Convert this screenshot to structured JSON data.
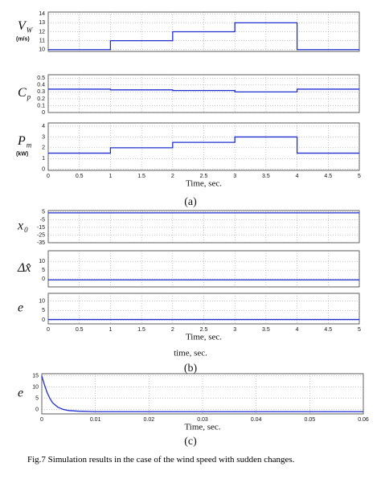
{
  "chart_data": [
    {
      "type": "line",
      "ylabel": "V",
      "ylabel_sub": "W",
      "ylabel_unit": "(m/s)",
      "color": "#1f2fd0",
      "x": [
        0,
        1,
        1,
        2,
        2,
        3,
        3,
        4,
        4,
        5
      ],
      "values": [
        10,
        10,
        11,
        11,
        12,
        12,
        13,
        13,
        10,
        10
      ],
      "xlim": [
        0,
        5
      ],
      "ylim": [
        9.8,
        14.2
      ],
      "xticks": [
        0,
        0.5,
        1,
        1.5,
        2,
        2.5,
        3,
        3.5,
        4,
        4.5,
        5
      ],
      "yticks": [
        10,
        11,
        12,
        13,
        14
      ],
      "grid": true,
      "xtick_labels": false
    },
    {
      "type": "line",
      "ylabel": "C",
      "ylabel_sub": "p",
      "color": "#1f2fd0",
      "x": [
        0,
        1,
        1,
        2,
        2,
        3,
        3,
        4,
        4,
        5
      ],
      "values": [
        0.34,
        0.34,
        0.33,
        0.33,
        0.32,
        0.32,
        0.3,
        0.3,
        0.34,
        0.34
      ],
      "xlim": [
        0,
        5
      ],
      "ylim": [
        0,
        0.55
      ],
      "xticks": [
        0,
        0.5,
        1,
        1.5,
        2,
        2.5,
        3,
        3.5,
        4,
        4.5,
        5
      ],
      "yticks": [
        0,
        0.1,
        0.2,
        0.3,
        0.4,
        0.5
      ],
      "grid": true,
      "xtick_labels": false
    },
    {
      "type": "line",
      "ylabel": "P",
      "ylabel_sub": "m",
      "ylabel_unit": "(kW)",
      "color": "#1f2fd0",
      "x": [
        0,
        1,
        1,
        2,
        2,
        3,
        3,
        4,
        4,
        5
      ],
      "values": [
        1.5,
        1.5,
        2,
        2,
        2.5,
        2.5,
        3,
        3,
        1.5,
        1.5
      ],
      "xlim": [
        0,
        5
      ],
      "ylim": [
        -0.1,
        4.3
      ],
      "xticks": [
        0,
        0.5,
        1,
        1.5,
        2,
        2.5,
        3,
        3.5,
        4,
        4.5,
        5
      ],
      "yticks": [
        0,
        1,
        2,
        3,
        4
      ],
      "grid": true,
      "xtick_labels": true,
      "xlabel": "Time, sec."
    },
    {
      "type": "line",
      "ylabel": "x",
      "ylabel_sub": "0",
      "color": "#1f2fd0",
      "x": [
        0,
        5
      ],
      "values": [
        4,
        4
      ],
      "xlim": [
        0,
        5
      ],
      "ylim": [
        -35,
        7
      ],
      "xticks": [
        0,
        0.5,
        1,
        1.5,
        2,
        2.5,
        3,
        3.5,
        4,
        4.5,
        5
      ],
      "yticks": [
        5,
        -5,
        -15,
        -25,
        -35
      ],
      "grid": true,
      "xtick_labels": false
    },
    {
      "type": "line",
      "ylabel": "Δx̂",
      "color": "#1f2fd0",
      "x": [
        0,
        5
      ],
      "values": [
        -0.5,
        -0.5
      ],
      "xlim": [
        0,
        5
      ],
      "ylim": [
        -4.5,
        16
      ],
      "xticks": [
        0,
        0.5,
        1,
        1.5,
        2,
        2.5,
        3,
        3.5,
        4,
        4.5,
        5
      ],
      "yticks": [
        0,
        5,
        10
      ],
      "grid": true,
      "xtick_labels": false
    },
    {
      "type": "line",
      "ylabel": "e",
      "color": "#1f2fd0",
      "x": [
        0,
        5
      ],
      "values": [
        0.3,
        0.3
      ],
      "xlim": [
        0,
        5
      ],
      "ylim": [
        -2,
        14
      ],
      "xticks": [
        0,
        0.5,
        1,
        1.5,
        2,
        2.5,
        3,
        3.5,
        4,
        4.5,
        5
      ],
      "yticks": [
        0,
        5,
        10
      ],
      "grid": true,
      "xtick_labels": true,
      "xlabel": "Time, sec."
    },
    {
      "type": "line",
      "ylabel": "e",
      "color": "#1f2fd0",
      "x": [
        0,
        0.0005,
        0.001,
        0.0015,
        0.002,
        0.003,
        0.004,
        0.005,
        0.007,
        0.01,
        0.06
      ],
      "values": [
        15,
        11,
        7.5,
        5,
        3,
        1,
        0,
        -0.5,
        -0.8,
        -1,
        -1
      ],
      "xlim": [
        0,
        0.06
      ],
      "ylim": [
        -2,
        16
      ],
      "xticks": [
        0,
        0.01,
        0.02,
        0.03,
        0.04,
        0.05,
        0.06
      ],
      "yticks": [
        0,
        5,
        10,
        15
      ],
      "grid": true,
      "xtick_labels": true,
      "xlabel": "Time, sec."
    }
  ],
  "panel_labels": [
    "(a)",
    "(b)",
    "(c)"
  ],
  "extra_label": "time, sec.",
  "caption": "Fig.7  Simulation results in the case of the wind speed with sudden changes."
}
